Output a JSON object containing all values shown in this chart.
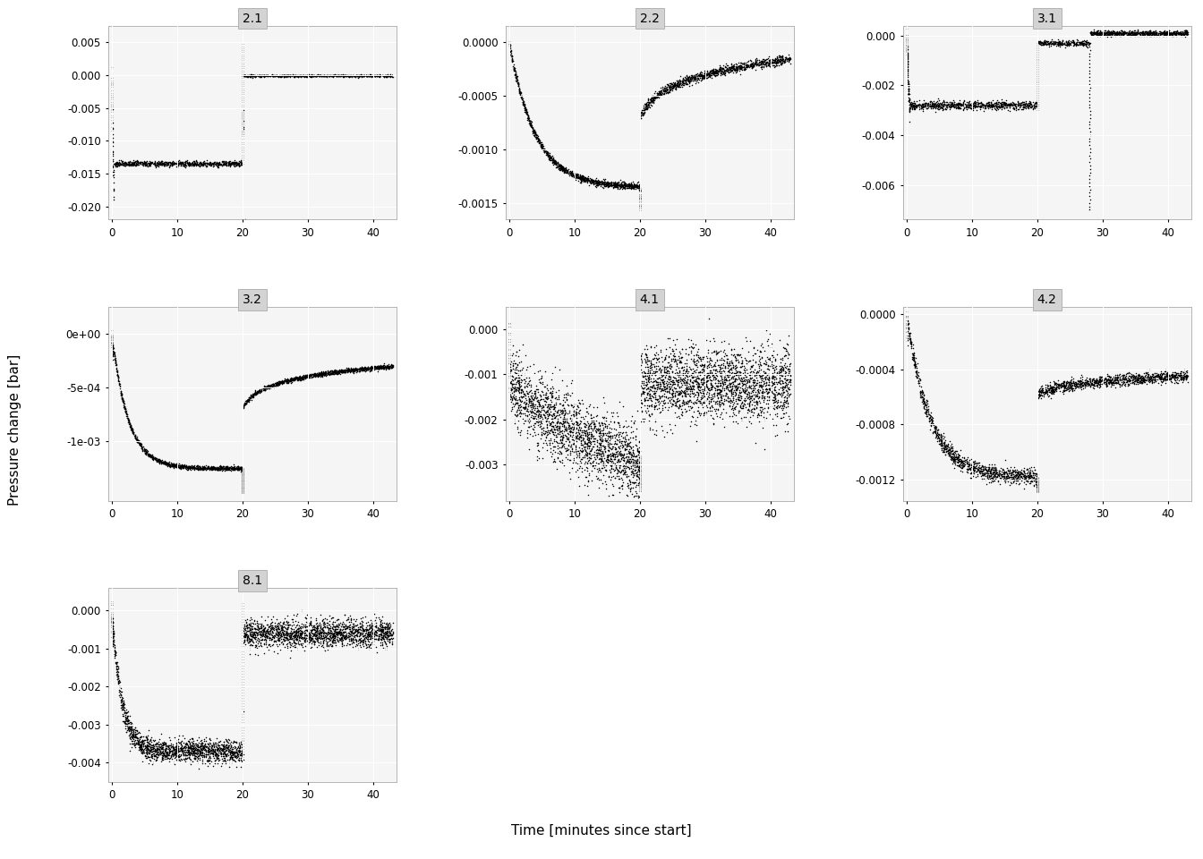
{
  "panels": [
    {
      "label": "2.1",
      "ylim": [
        -0.022,
        0.0075
      ],
      "yticks": [
        0.005,
        0.0,
        -0.005,
        -0.01,
        -0.015,
        -0.02
      ],
      "yticklabels": [
        "0.005",
        "0.000",
        "-0.005",
        "-0.010",
        "-0.015",
        "-0.020"
      ],
      "row": 0,
      "col": 0
    },
    {
      "label": "2.2",
      "ylim": [
        -0.00165,
        0.00015
      ],
      "yticks": [
        0.0,
        -0.0005,
        -0.001,
        -0.0015
      ],
      "yticklabels": [
        "0.0000",
        "-0.0005",
        "-0.0010",
        "-0.0015"
      ],
      "row": 0,
      "col": 1
    },
    {
      "label": "3.1",
      "ylim": [
        -0.0074,
        0.0004
      ],
      "yticks": [
        0.0,
        -0.002,
        -0.004,
        -0.006
      ],
      "yticklabels": [
        "0.000",
        "-0.002",
        "-0.004",
        "-0.006"
      ],
      "row": 0,
      "col": 2
    },
    {
      "label": "3.2",
      "ylim": [
        -0.00155,
        0.00025
      ],
      "yticks": [
        0.0,
        -0.0005,
        -0.001
      ],
      "yticklabels": [
        "0e+00",
        "-5e-04",
        "-1e-03"
      ],
      "row": 1,
      "col": 0
    },
    {
      "label": "4.1",
      "ylim": [
        -0.0038,
        0.0005
      ],
      "yticks": [
        0.0,
        -0.001,
        -0.002,
        -0.003
      ],
      "yticklabels": [
        "0.000",
        "-0.001",
        "-0.002",
        "-0.003"
      ],
      "row": 1,
      "col": 1
    },
    {
      "label": "4.2",
      "ylim": [
        -0.00135,
        5e-05
      ],
      "yticks": [
        0.0,
        -0.0004,
        -0.0008,
        -0.0012
      ],
      "yticklabels": [
        "0.0000",
        "-0.0004",
        "-0.0008",
        "-0.0012"
      ],
      "row": 1,
      "col": 2
    },
    {
      "label": "8.1",
      "ylim": [
        -0.0045,
        0.0006
      ],
      "yticks": [
        0.0,
        -0.001,
        -0.002,
        -0.003,
        -0.004
      ],
      "yticklabels": [
        "0.000",
        "-0.001",
        "-0.002",
        "-0.003",
        "-0.004"
      ],
      "row": 2,
      "col": 0
    }
  ],
  "xticks": [
    0,
    10,
    20,
    30,
    40
  ],
  "xlim": [
    -0.5,
    43.5
  ],
  "xlabel": "Time [minutes since start]",
  "ylabel": "Pressure change [bar]",
  "panel_bg": "#f5f5f5",
  "header_bg": "#d3d3d3",
  "grid_color": "#ffffff",
  "dot_color": "#000000",
  "dot_size": 1.2,
  "fig_bg": "#ffffff"
}
